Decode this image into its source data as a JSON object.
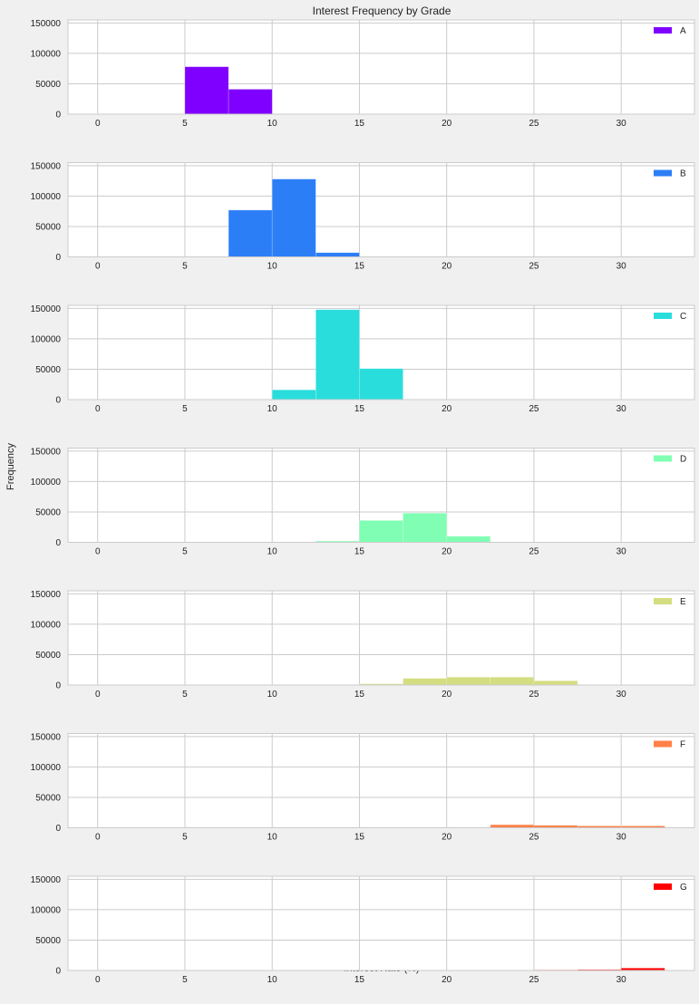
{
  "figure": {
    "title": "Interest Frequency by Grade",
    "xlabel": "Interest Rate (%)",
    "ylabel": "Frequency"
  },
  "chart_data": {
    "type": "bar",
    "subtype": "histogram-stack-of-panels",
    "title": "Interest Frequency by Grade",
    "xlabel": "Interest Rate (%)",
    "ylabel": "Frequency",
    "xlim": [
      -1.7,
      34.2
    ],
    "ylim": [
      0,
      155000
    ],
    "xticks": [
      0,
      5,
      10,
      15,
      20,
      25,
      30
    ],
    "yticks": [
      0,
      50000,
      100000,
      150000
    ],
    "bin_edges": [
      0,
      2.5,
      5,
      7.5,
      10,
      12.5,
      15,
      17.5,
      20,
      22.5,
      25,
      27.5,
      30,
      32.5
    ],
    "grid": true,
    "legend_position": "top-right",
    "series": [
      {
        "name": "A",
        "color": "#8000ff",
        "values": [
          0,
          0,
          78000,
          41000,
          0,
          0,
          0,
          0,
          0,
          0,
          0,
          0,
          0
        ]
      },
      {
        "name": "B",
        "color": "#2c7ef7",
        "values": [
          0,
          0,
          0,
          77000,
          128000,
          7000,
          0,
          0,
          0,
          0,
          0,
          0,
          0
        ]
      },
      {
        "name": "C",
        "color": "#2adddd",
        "values": [
          0,
          0,
          0,
          0,
          16000,
          148000,
          51000,
          0,
          0,
          0,
          0,
          0,
          0
        ]
      },
      {
        "name": "D",
        "color": "#80ffb4",
        "values": [
          0,
          0,
          0,
          0,
          0,
          2000,
          36000,
          48000,
          10000,
          0,
          0,
          0,
          0
        ]
      },
      {
        "name": "E",
        "color": "#d4dd80",
        "values": [
          0,
          0,
          0,
          0,
          0,
          0,
          2000,
          11000,
          13000,
          13000,
          7000,
          0,
          0
        ]
      },
      {
        "name": "F",
        "color": "#ff8147",
        "values": [
          0,
          0,
          0,
          0,
          0,
          0,
          0,
          0,
          0,
          5000,
          4000,
          3000,
          3000
        ]
      },
      {
        "name": "G",
        "color": "#ff0000",
        "values": [
          0,
          0,
          0,
          0,
          0,
          0,
          0,
          0,
          0,
          0,
          1000,
          1500,
          4000
        ]
      }
    ]
  }
}
